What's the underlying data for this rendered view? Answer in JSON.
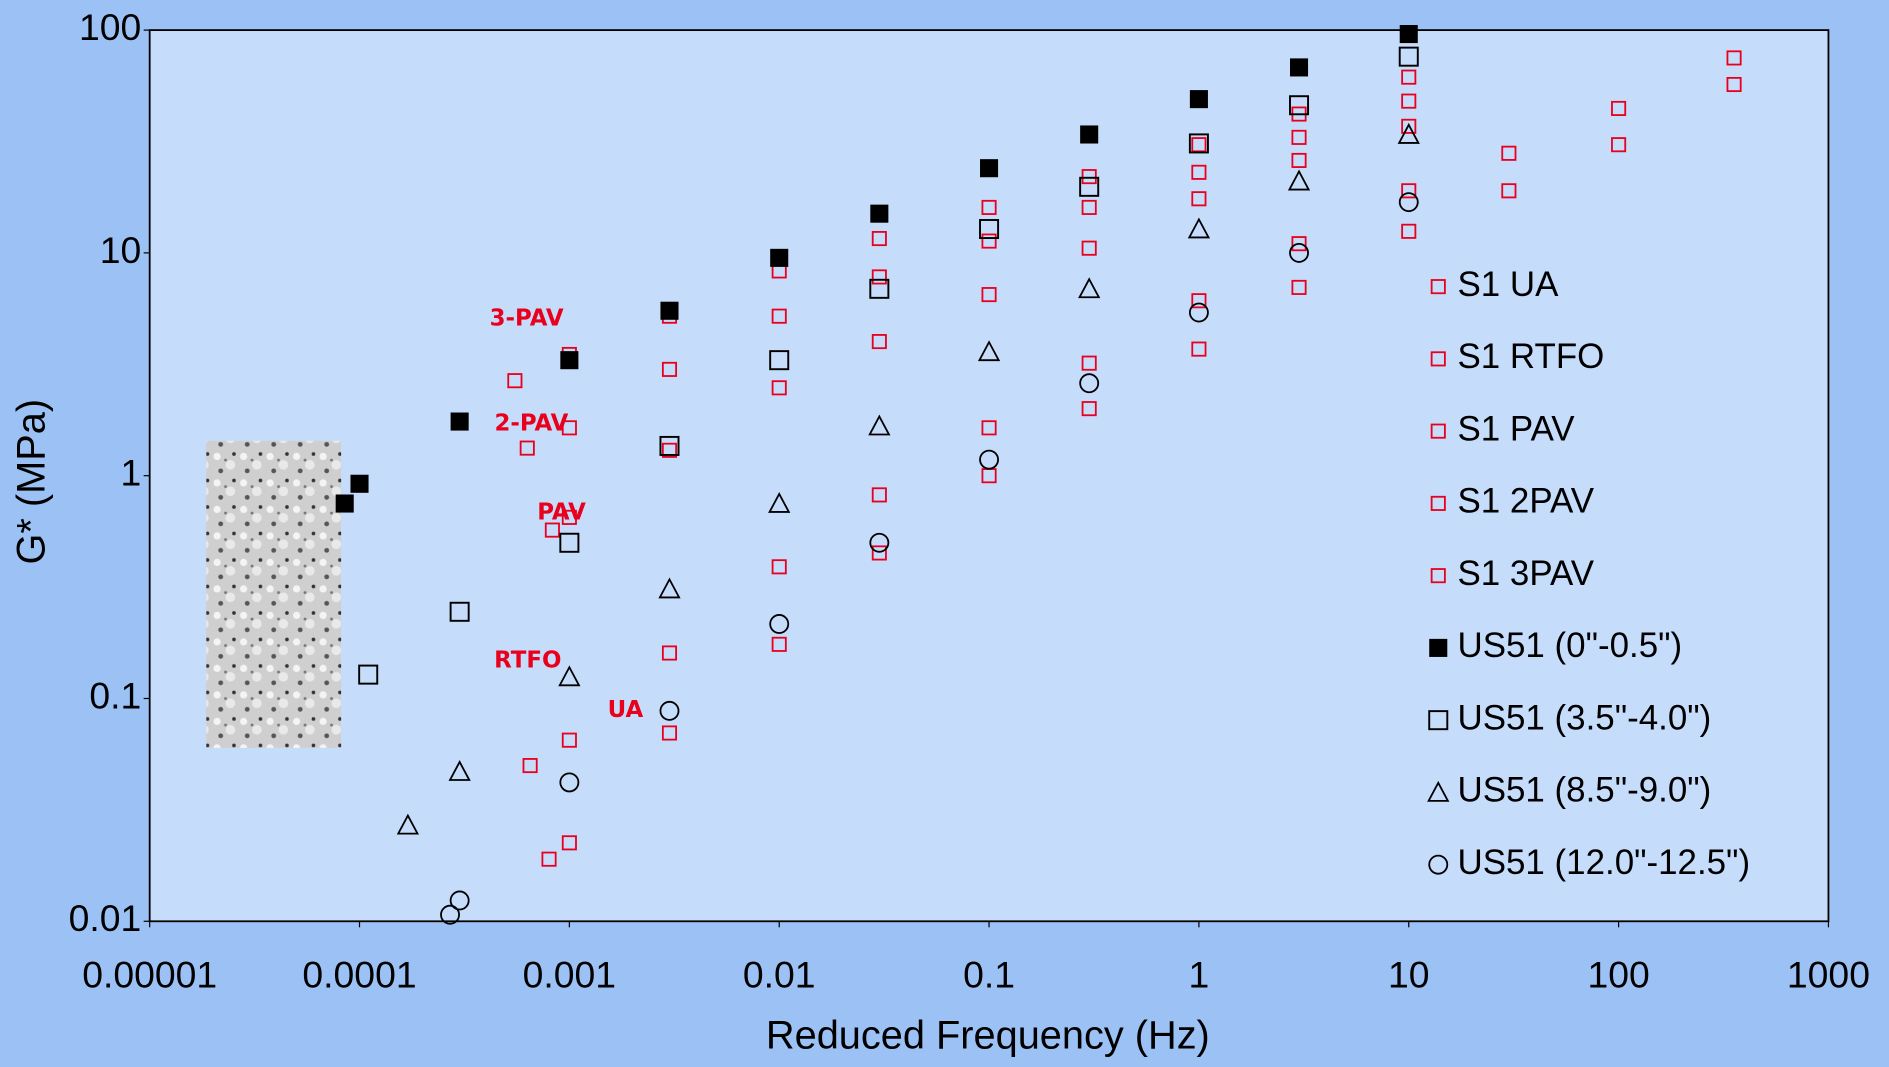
{
  "chart_data": {
    "type": "scatter",
    "x_label": "Reduced Frequency (Hz)",
    "y_label": "G* (MPa)",
    "xscale": "log",
    "yscale": "log",
    "xlim": [
      1e-05,
      1000
    ],
    "ylim": [
      0.01,
      100
    ],
    "xticks": [
      {
        "value": 1e-05,
        "label": "0.00001"
      },
      0.0001,
      0.001,
      0.01,
      0.1,
      1,
      10,
      100,
      1000
    ],
    "yticks": [
      0.01,
      0.1,
      1,
      10,
      100
    ],
    "legend_position": "right",
    "annotations": [
      "3-PAV",
      "2-PAV",
      "PAV",
      "RTFO",
      "UA"
    ],
    "series": [
      {
        "name": "S1 UA",
        "color": "#e8001c",
        "marker": "square-open-small",
        "x": [
          0.0008,
          0.001,
          0.003,
          0.01,
          0.03,
          0.1,
          0.3,
          1,
          3,
          10,
          30,
          100,
          355
        ],
        "values": [
          0.019,
          0.0225,
          0.07,
          0.175,
          0.45,
          1.0,
          2.0,
          3.7,
          7,
          12.5,
          19,
          30.6,
          57
        ]
      },
      {
        "name": "S1 RTFO",
        "color": "#e8001c",
        "marker": "square-open-small",
        "x": [
          0.00065,
          0.001,
          0.003,
          0.01,
          0.03,
          0.1,
          0.3,
          1,
          3,
          10,
          30,
          100,
          355
        ],
        "values": [
          0.05,
          0.065,
          0.16,
          0.39,
          0.82,
          1.64,
          3.2,
          6.1,
          11,
          19,
          28,
          44.5,
          75
        ]
      },
      {
        "name": "S1 PAV",
        "color": "#e8001c",
        "marker": "square-open-small",
        "x": [
          0.00083,
          0.001,
          0.003,
          0.01,
          0.03,
          0.1,
          0.3,
          1,
          3,
          10
        ],
        "values": [
          0.57,
          0.65,
          1.3,
          2.48,
          4.0,
          6.5,
          10.5,
          17.5,
          26,
          37
        ]
      },
      {
        "name": "S1 2PAV",
        "color": "#e8001c",
        "marker": "square-open-small",
        "x": [
          0.00063,
          0.001,
          0.003,
          0.01,
          0.03,
          0.1,
          0.3,
          1,
          3,
          10
        ],
        "values": [
          1.33,
          1.64,
          3.0,
          5.2,
          7.8,
          11.3,
          16,
          23,
          33,
          48
        ]
      },
      {
        "name": "S1 3PAV",
        "color": "#e8001c",
        "marker": "square-open-small",
        "x": [
          0.00055,
          0.001,
          0.003,
          0.01,
          0.03,
          0.1,
          0.3,
          1,
          3,
          10
        ],
        "values": [
          2.67,
          3.5,
          5.2,
          8.3,
          11.6,
          16,
          22,
          30.6,
          42,
          61.5
        ]
      },
      {
        "name": "US51 (0\"-0.5\")",
        "color": "#000000",
        "marker": "square-filled",
        "x": [
          8.5e-05,
          0.0001,
          0.0003,
          0.001,
          0.003,
          0.01,
          0.03,
          0.1,
          0.3,
          1,
          3,
          10
        ],
        "values": [
          0.75,
          0.92,
          1.75,
          3.3,
          5.5,
          9.5,
          15,
          24,
          34,
          49,
          68,
          96
        ]
      },
      {
        "name": "US51 (3.5\"-4.0\")",
        "color": "#000000",
        "marker": "square-open",
        "x": [
          0.00011,
          0.0003,
          0.001,
          0.003,
          0.01,
          0.03,
          0.1,
          0.3,
          1,
          3,
          10
        ],
        "values": [
          0.128,
          0.245,
          0.5,
          1.36,
          3.3,
          6.9,
          12.8,
          19.8,
          31,
          46,
          76
        ]
      },
      {
        "name": "US51 (8.5\"-9.0\")",
        "color": "#000000",
        "marker": "triangle-open",
        "x": [
          0.00017,
          0.0003,
          0.001,
          0.003,
          0.01,
          0.03,
          0.1,
          0.3,
          1,
          3,
          10
        ],
        "values": [
          0.027,
          0.047,
          0.125,
          0.31,
          0.75,
          1.67,
          3.6,
          6.9,
          12.8,
          21,
          34
        ]
      },
      {
        "name": "US51 (12.0\"-12.5\")",
        "color": "#000000",
        "marker": "circle-open",
        "x": [
          0.00027,
          0.0003,
          0.001,
          0.003,
          0.01,
          0.03,
          0.1,
          0.3,
          1,
          3,
          10
        ],
        "values": [
          0.0107,
          0.0124,
          0.042,
          0.088,
          0.216,
          0.5,
          1.18,
          2.6,
          5.4,
          10,
          16.9
        ]
      }
    ]
  }
}
